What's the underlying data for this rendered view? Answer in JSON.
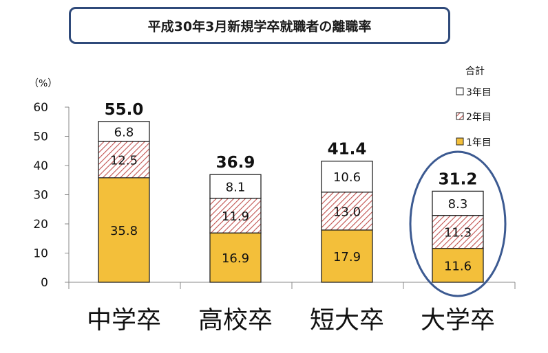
{
  "chart_data": {
    "type": "bar",
    "stacked": true,
    "title": "平成30年3月新規学卒就職者の離職率",
    "ylabel": "（%）",
    "ylim": [
      0,
      60
    ],
    "yticks": [
      0,
      10,
      20,
      30,
      40,
      50,
      60
    ],
    "categories": [
      "中学卒",
      "高校卒",
      "短大卒",
      "大学卒"
    ],
    "series": [
      {
        "name": "1年目",
        "values": [
          35.8,
          16.9,
          17.9,
          11.6
        ],
        "color": "#f3bf3a"
      },
      {
        "name": "2年目",
        "values": [
          12.5,
          11.9,
          13.0,
          11.3
        ],
        "color": "#c0504d",
        "pattern": "hatch"
      },
      {
        "name": "3年目",
        "values": [
          6.8,
          8.1,
          10.6,
          8.3
        ],
        "color": "#ffffff"
      }
    ],
    "value_labels": [
      [
        "35.8",
        "16.9",
        "17.9",
        "11.6"
      ],
      [
        "12.5",
        "11.9",
        "13.0",
        "11.3"
      ],
      [
        "6.8",
        "8.1",
        "10.6",
        "8.3"
      ]
    ],
    "totals": [
      "55.0",
      "36.9",
      "41.4",
      "31.2"
    ],
    "legend": {
      "title": "合計",
      "position": "top-right"
    },
    "highlight_category": "大学卒",
    "highlight_color": "#3c5a91",
    "grid": false
  }
}
